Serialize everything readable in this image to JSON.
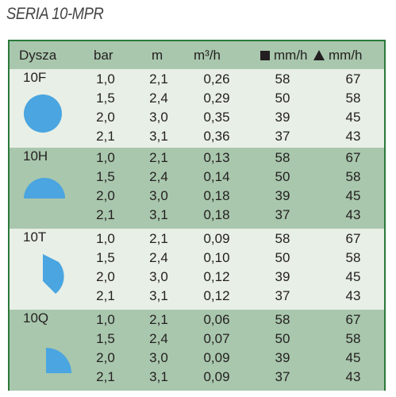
{
  "title": "SERIA 10-MPR",
  "headers": {
    "dysza": "Dysza",
    "bar": "bar",
    "m": "m",
    "flow": "m³/h",
    "square_mm": "mm/h",
    "triangle_mm": "mm/h"
  },
  "groups": [
    {
      "name": "10F",
      "shape": "full-circle",
      "rows": [
        [
          "1,0",
          "2,1",
          "0,26",
          "58",
          "67"
        ],
        [
          "1,5",
          "2,4",
          "0,29",
          "50",
          "58"
        ],
        [
          "2,0",
          "3,0",
          "0,35",
          "39",
          "45"
        ],
        [
          "2,1",
          "3,1",
          "0,36",
          "37",
          "43"
        ]
      ]
    },
    {
      "name": "10H",
      "shape": "half-circle",
      "rows": [
        [
          "1,0",
          "2,1",
          "0,13",
          "58",
          "67"
        ],
        [
          "1,5",
          "2,4",
          "0,14",
          "50",
          "58"
        ],
        [
          "2,0",
          "3,0",
          "0,18",
          "39",
          "45"
        ],
        [
          "2,1",
          "3,1",
          "0,18",
          "37",
          "43"
        ]
      ]
    },
    {
      "name": "10T",
      "shape": "third-circle",
      "rows": [
        [
          "1,0",
          "2,1",
          "0,09",
          "58",
          "67"
        ],
        [
          "1,5",
          "2,4",
          "0,10",
          "50",
          "58"
        ],
        [
          "2,0",
          "3,0",
          "0,12",
          "39",
          "45"
        ],
        [
          "2,1",
          "3,1",
          "0,12",
          "37",
          "43"
        ]
      ]
    },
    {
      "name": "10Q",
      "shape": "quarter-circle",
      "rows": [
        [
          "1,0",
          "2,1",
          "0,06",
          "58",
          "67"
        ],
        [
          "1,5",
          "2,4",
          "0,07",
          "50",
          "58"
        ],
        [
          "2,0",
          "3,0",
          "0,09",
          "39",
          "45"
        ],
        [
          "2,1",
          "3,1",
          "0,09",
          "37",
          "43"
        ]
      ]
    }
  ],
  "colors": {
    "border": "#2a7a3a",
    "band_dark": "#a9c7ad",
    "band_light": "#e8efe6",
    "nozzle_fill": "#4aa5e0"
  }
}
